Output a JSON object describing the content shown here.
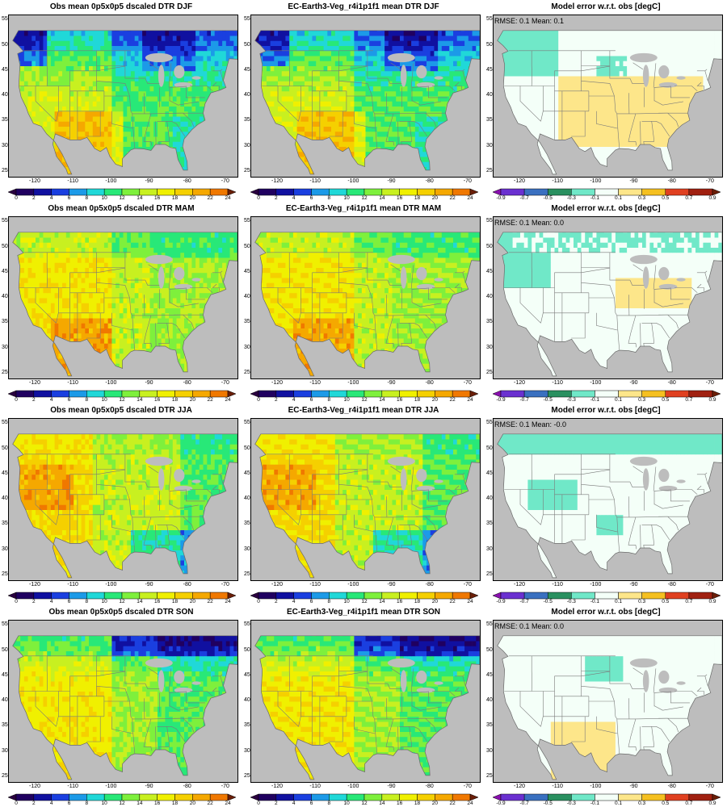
{
  "panels": [
    {
      "id": "r0c0",
      "title": "Obs mean 0p5x0p5 dscaled DTR DJF",
      "kind": "abs",
      "season": "DJF"
    },
    {
      "id": "r0c1",
      "title": "EC-Earth3-Veg_r4i1p1f1 mean DTR DJF",
      "kind": "abs",
      "season": "DJF"
    },
    {
      "id": "r0c2",
      "title": "Model error w.r.t. obs [degC]",
      "kind": "err",
      "stats": "RMSE: 0.1   Mean: 0.1",
      "season": "DJF"
    },
    {
      "id": "r1c0",
      "title": "Obs mean 0p5x0p5 dscaled DTR MAM",
      "kind": "abs",
      "season": "MAM"
    },
    {
      "id": "r1c1",
      "title": "EC-Earth3-Veg_r4i1p1f1 mean DTR MAM",
      "kind": "abs",
      "season": "MAM"
    },
    {
      "id": "r1c2",
      "title": "Model error w.r.t. obs [degC]",
      "kind": "err",
      "stats": "RMSE: 0.1   Mean: 0.0",
      "season": "MAM"
    },
    {
      "id": "r2c0",
      "title": "Obs mean 0p5x0p5 dscaled DTR JJA",
      "kind": "abs",
      "season": "JJA"
    },
    {
      "id": "r2c1",
      "title": "EC-Earth3-Veg_r4i1p1f1 mean DTR JJA",
      "kind": "abs",
      "season": "JJA"
    },
    {
      "id": "r2c2",
      "title": "Model error w.r.t. obs [degC]",
      "kind": "err",
      "stats": "RMSE: 0.1   Mean: -0.0",
      "season": "JJA"
    },
    {
      "id": "r3c0",
      "title": "Obs mean 0p5x0p5 dscaled DTR SON",
      "kind": "abs",
      "season": "SON"
    },
    {
      "id": "r3c1",
      "title": "EC-Earth3-Veg_r4i1p1f1 mean DTR SON",
      "kind": "abs",
      "season": "SON"
    },
    {
      "id": "r3c2",
      "title": "Model error w.r.t. obs [degC]",
      "kind": "err",
      "stats": "RMSE: 0.1   Mean: 0.0",
      "season": "SON"
    }
  ],
  "axes": {
    "lat_ticks": [
      "25",
      "30",
      "35",
      "40",
      "45",
      "50",
      "55"
    ],
    "lat_values": [
      25,
      30,
      35,
      40,
      45,
      50,
      55
    ],
    "lon_ticks": [
      "-120",
      "-110",
      "-100",
      "-90",
      "-80",
      "-70"
    ],
    "lon_values": [
      -120,
      -110,
      -100,
      -90,
      -80,
      -70
    ],
    "lat_range": [
      24,
      56
    ],
    "lon_range": [
      -127,
      -67
    ]
  },
  "colorbars": {
    "abs": {
      "ticks": [
        "0",
        "2",
        "4",
        "6",
        "8",
        "10",
        "12",
        "14",
        "16",
        "18",
        "20",
        "22",
        "24"
      ],
      "colors": [
        "#2a0040",
        "#200060",
        "#1010a0",
        "#1a3fe0",
        "#1c9ae8",
        "#20d8d8",
        "#28e878",
        "#7ef03c",
        "#c8f020",
        "#f0f000",
        "#f5d000",
        "#f5a800",
        "#f07800",
        "#6a1e08"
      ]
    },
    "err": {
      "ticks": [
        "-0.9",
        "-0.7",
        "-0.5",
        "-0.3",
        "-0.1",
        "0.1",
        "0.3",
        "0.5",
        "0.7",
        "0.9"
      ],
      "colors": [
        "#8a10b0",
        "#6a30d0",
        "#3a70c0",
        "#2a9060",
        "#70e8c8",
        "#f4fff8",
        "#fde68a",
        "#f5c020",
        "#e04020",
        "#a02010",
        "#6a1e08"
      ]
    }
  }
}
